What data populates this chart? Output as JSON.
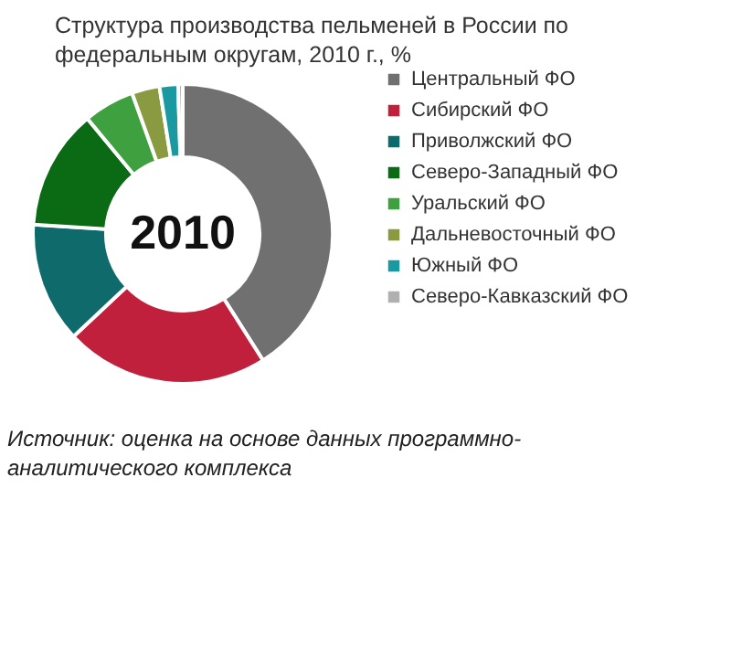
{
  "chart_data": {
    "type": "donut",
    "title": "Структура производства пельменей в России по федеральным округам, 2010 г., %",
    "categories": [
      "Центральный ФО",
      "Сибирский ФО",
      "Приволжский ФО",
      "Северо-Западный ФО",
      "Уральский ФО",
      "Дальневосточный ФО",
      "Южный ФО",
      "Северо-Кавказский ФО"
    ],
    "values": [
      41,
      22,
      13,
      13,
      5.5,
      3,
      2,
      0.5
    ],
    "colors": [
      "#707070",
      "#c0203c",
      "#0f6b6b",
      "#0a6b14",
      "#3fa03f",
      "#8a9a40",
      "#1a9aa0",
      "#b0b0b0"
    ],
    "legend": "right",
    "annotations": [
      "2010",
      "Источник: оценка на основе данных программно-аналитического комплекса"
    ]
  }
}
